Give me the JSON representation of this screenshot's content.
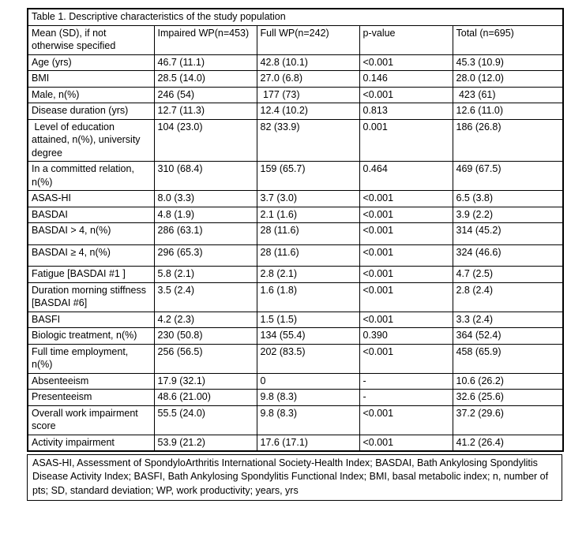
{
  "title": "Table 1. Descriptive characteristics of the study population",
  "table": {
    "headers": [
      "Mean (SD), if not otherwise specified",
      "Impaired WP(n=453)",
      "Full WP(n=242)",
      "p-value",
      "Total (n=695)"
    ],
    "rows": [
      {
        "label": "Age (yrs)",
        "impaired": "46.7 (11.1)",
        "full": "42.8 (10.1)",
        "p": "<0.001",
        "p_bold": true,
        "total": "45.3 (10.9)"
      },
      {
        "label": "BMI",
        "impaired": "28.5 (14.0)",
        "full": "27.0 (6.8)",
        "p": "0.146",
        "p_bold": false,
        "total": "28.0 (12.0)"
      },
      {
        "label": "Male, n(%)",
        "impaired": "246 (54)",
        "full": " 177 (73)",
        "p": "<0.001",
        "p_bold": true,
        "total": " 423 (61)"
      },
      {
        "label": "Disease duration (yrs)",
        "impaired": "12.7 (11.3)",
        "full": "12.4 (10.2)",
        "p": "0.813",
        "p_bold": false,
        "total": "12.6 (11.0)"
      },
      {
        "label": " Level of education attained, n(%), university degree",
        "impaired": "104 (23.0)",
        "full": "82 (33.9)",
        "p": "0.001",
        "p_bold": true,
        "total": "186 (26.8)"
      },
      {
        "label": "In a committed relation, n(%)",
        "impaired": "310 (68.4)",
        "full": "159 (65.7)",
        "p": "0.464",
        "p_bold": false,
        "total": "469 (67.5)"
      },
      {
        "label": "ASAS-HI",
        "impaired": "8.0 (3.3)",
        "full": "3.7 (3.0)",
        "p": "<0.001",
        "p_bold": true,
        "total": "6.5 (3.8)"
      },
      {
        "label": "BASDAI",
        "impaired": "4.8 (1.9)",
        "full": "2.1 (1.6)",
        "p": "<0.001",
        "p_bold": true,
        "total": "3.9 (2.2)"
      },
      {
        "label": "BASDAI > 4, n(%)",
        "impaired": "286 (63.1)",
        "full": "28 (11.6)",
        "p": "<0.001",
        "p_bold": true,
        "total": "314 (45.2)",
        "tall": true
      },
      {
        "label": "BASDAI ≥ 4, n(%)",
        "impaired": "296 (65.3)",
        "full": "28 (11.6)",
        "p": "<0.001",
        "p_bold": true,
        "total": "324 (46.6)",
        "tall": true
      },
      {
        "label": "Fatigue [BASDAI #1 ]",
        "impaired": "5.8 (2.1)",
        "full": "2.8 (2.1)",
        "p": "<0.001",
        "p_bold": true,
        "total": "4.7 (2.5)"
      },
      {
        "label": "Duration morning stiffness [BASDAI #6]",
        "impaired": "3.5 (2.4)",
        "full": "1.6 (1.8)",
        "p": "<0.001",
        "p_bold": true,
        "total": "2.8 (2.4)"
      },
      {
        "label": "BASFI",
        "impaired": "4.2 (2.3)",
        "full": "1.5 (1.5)",
        "p": "<0.001",
        "p_bold": true,
        "total": "3.3 (2.4)"
      },
      {
        "label": "Biologic treatment, n(%)",
        "impaired": "230 (50.8)",
        "full": "134 (55.4)",
        "p": "0.390",
        "p_bold": false,
        "total": "364 (52.4)"
      },
      {
        "label": "Full time employment, n(%)",
        "impaired": "256 (56.5)",
        "full": "202 (83.5)",
        "p": "<0.001",
        "p_bold": true,
        "total": "458 (65.9)"
      },
      {
        "label": "Absenteeism",
        "impaired": "17.9 (32.1)",
        "full": "0",
        "p": "-",
        "p_bold": false,
        "total": "10.6 (26.2)"
      },
      {
        "label": "Presenteeism",
        "impaired": "48.6 (21.00)",
        "full": "9.8 (8.3)",
        "p": "-",
        "p_bold": false,
        "total": "32.6 (25.6)"
      },
      {
        "label": "Overall work impairment score",
        "impaired": "55.5 (24.0)",
        "full": "9.8 (8.3)",
        "p": "<0.001",
        "p_bold": true,
        "total": "37.2 (29.6)"
      },
      {
        "label": "Activity impairment",
        "impaired": "53.9 (21.2)",
        "full": "17.6 (17.1)",
        "p": "<0.001",
        "p_bold": true,
        "total": "41.2 (26.4)"
      }
    ]
  },
  "footnote": "ASAS-HI, Assessment of SpondyloArthritis International Society-Health Index; BASDAI, Bath Ankylosing Spondylitis Disease Activity Index; BASFI, Bath Ankylosing Spondylitis Functional Index; BMI, basal metabolic index; n, number of pts; SD, standard deviation; WP, work productivity; years, yrs"
}
